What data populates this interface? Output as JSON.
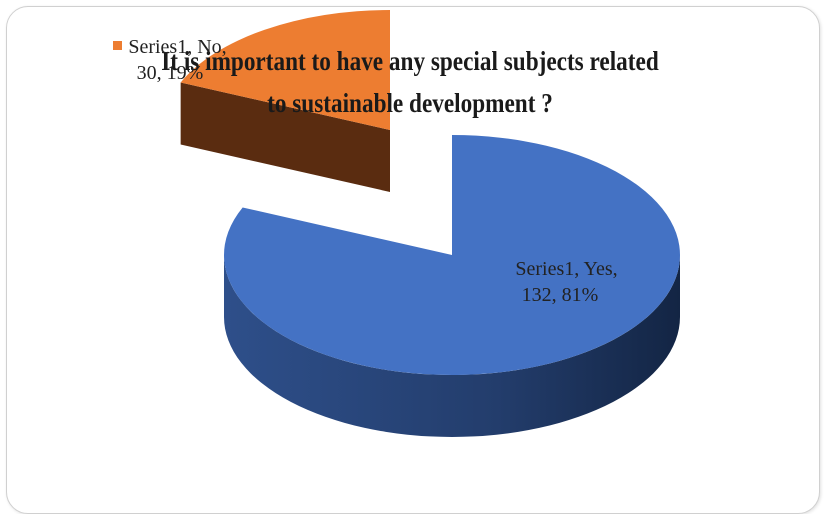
{
  "chart_data": {
    "type": "pie",
    "title": "It is important to have any special subjects related to sustainable development ?",
    "series": [
      {
        "name": "Series1",
        "categories": [
          "Yes",
          "No"
        ],
        "values": [
          132,
          30
        ],
        "percents": [
          81,
          19
        ]
      }
    ],
    "colors": {
      "Yes": "#4472c4",
      "No": "#ed7d31"
    },
    "legend": "none",
    "style": "3d-exploded"
  },
  "labels": {
    "yes_line1": "Series1, Yes,",
    "yes_line2": "132, 81%",
    "no_line1": "Series1, No,",
    "no_line2": "30, 19%"
  }
}
